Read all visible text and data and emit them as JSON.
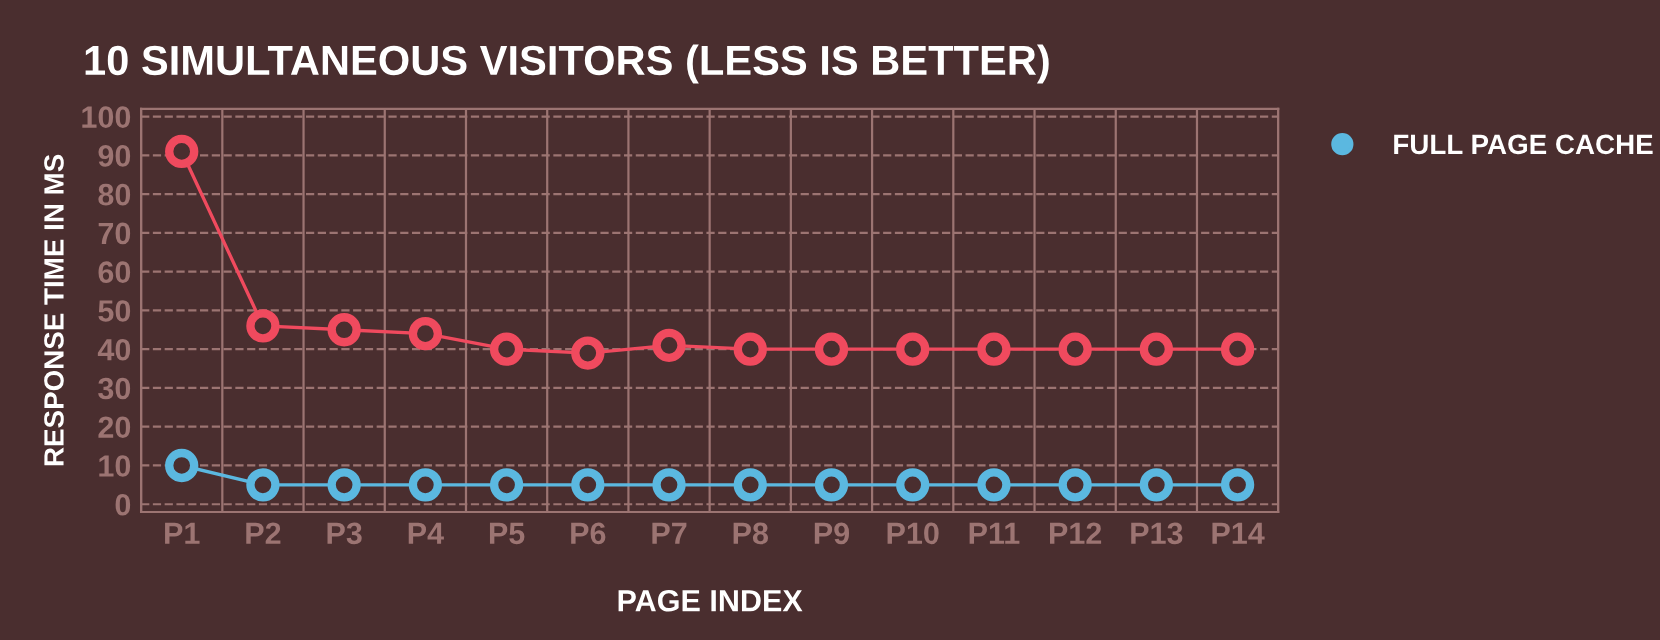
{
  "chart_data": {
    "type": "line",
    "title": "10 SIMULTANEOUS VISITORS (LESS IS BETTER)",
    "xlabel": "PAGE INDEX",
    "ylabel": "RESPONSE TIME IN MS",
    "categories": [
      "P1",
      "P2",
      "P3",
      "P4",
      "P5",
      "P6",
      "P7",
      "P8",
      "P9",
      "P10",
      "P11",
      "P12",
      "P13",
      "P14"
    ],
    "series": [
      {
        "name": "FULL PAGE CACHE",
        "color": "#5bb8e0",
        "values": [
          10,
          5,
          5,
          5,
          5,
          5,
          5,
          5,
          5,
          5,
          5,
          5,
          5,
          5
        ]
      },
      {
        "color": "#f04a5e",
        "values": [
          91,
          46,
          45,
          44,
          40,
          39,
          41,
          40,
          40,
          40,
          40,
          40,
          40,
          40
        ]
      }
    ],
    "ylim": [
      -2,
      102
    ],
    "yticks": [
      0,
      10,
      20,
      30,
      40,
      50,
      60,
      70,
      80,
      90,
      100
    ],
    "grid": "y",
    "legend": "right",
    "marker": "circle",
    "line_style": "solid"
  }
}
